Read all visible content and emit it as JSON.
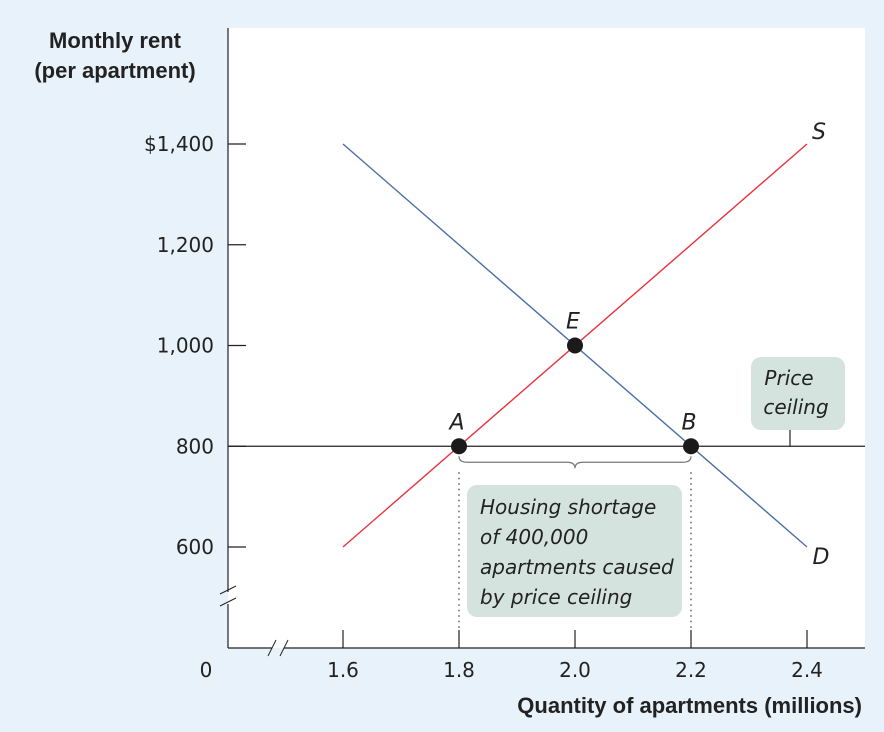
{
  "chart_data": {
    "type": "line",
    "ylabel": [
      "Monthly rent",
      "(per apartment)"
    ],
    "xlabel": "Quantity of apartments (millions)",
    "y_ticks": [
      {
        "value": 1400,
        "label": "$1,400"
      },
      {
        "value": 1200,
        "label": "1,200"
      },
      {
        "value": 1000,
        "label": "1,000"
      },
      {
        "value": 800,
        "label": "800"
      },
      {
        "value": 600,
        "label": "600"
      }
    ],
    "x_ticks": [
      {
        "value": 1.6,
        "label": "1.6"
      },
      {
        "value": 1.8,
        "label": "1.8"
      },
      {
        "value": 2.0,
        "label": "2.0"
      },
      {
        "value": 2.2,
        "label": "2.2"
      },
      {
        "value": 2.4,
        "label": "2.4"
      }
    ],
    "origin_label": "0",
    "xlim": [
      1.6,
      2.4
    ],
    "ylim": [
      600,
      1400
    ],
    "axis_breaks": true,
    "series": [
      {
        "name": "S",
        "color": "#e8333f",
        "points": [
          [
            1.6,
            600
          ],
          [
            2.4,
            1400
          ]
        ]
      },
      {
        "name": "D",
        "color": "#4a6fa5",
        "points": [
          [
            1.6,
            1400
          ],
          [
            2.4,
            600
          ]
        ]
      }
    ],
    "price_ceiling": {
      "value": 800,
      "label": [
        "Price",
        "ceiling"
      ]
    },
    "points": [
      {
        "label": "E",
        "x": 2.0,
        "y": 1000
      },
      {
        "label": "A",
        "x": 1.8,
        "y": 800
      },
      {
        "label": "B",
        "x": 2.2,
        "y": 800
      }
    ],
    "annotation": {
      "lines": [
        "Housing shortage",
        "of 400,000",
        "apartments caused",
        "by price ceiling"
      ],
      "x_from": 1.8,
      "x_to": 2.2,
      "at_y": 800
    },
    "colors": {
      "background": "#e8f2fb",
      "panel": "#ffffff",
      "box": "#d5e3df"
    }
  }
}
